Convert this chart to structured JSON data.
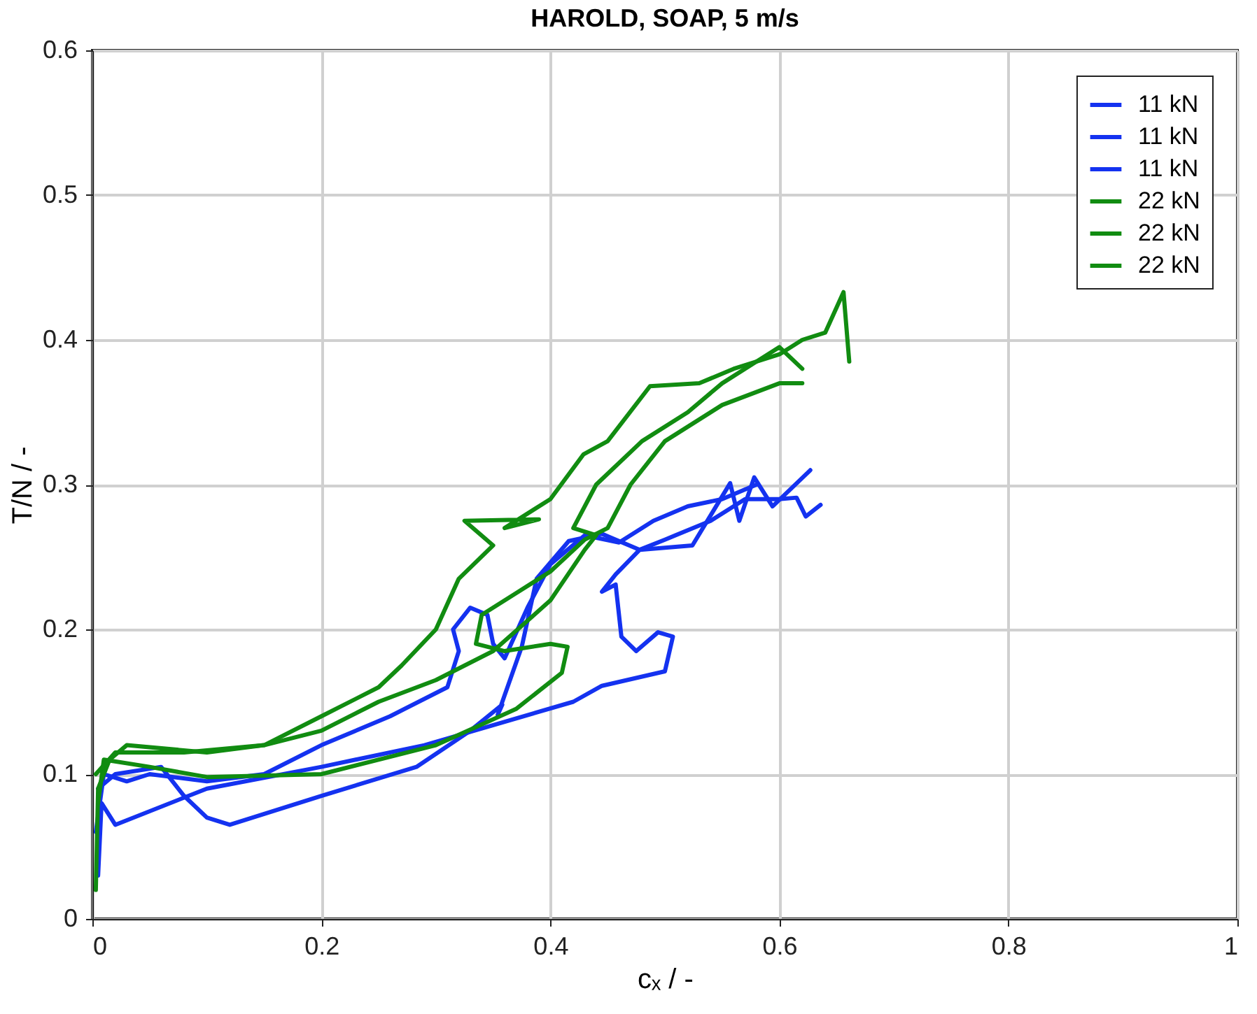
{
  "chart_data": {
    "type": "line",
    "title": "HAROLD, SOAP, 5 m/s",
    "xlabel": "cₓ / -",
    "ylabel": "T/N / -",
    "xlim": [
      0,
      1
    ],
    "ylim": [
      0,
      0.6
    ],
    "xticks": [
      0,
      0.2,
      0.4,
      0.6,
      0.8,
      1
    ],
    "yticks": [
      0,
      0.1,
      0.2,
      0.3,
      0.4,
      0.5,
      0.6
    ],
    "grid": true,
    "legend": "top right",
    "marker": "none",
    "line_style": "solid",
    "series": [
      {
        "name": "11 kN",
        "color": "#1432f0",
        "x": [
          0.005,
          0.008,
          0.02,
          0.1,
          0.2,
          0.29,
          0.42,
          0.445,
          0.5,
          0.507,
          0.494,
          0.475,
          0.462,
          0.457,
          0.445,
          0.457,
          0.478,
          0.524,
          0.557,
          0.565,
          0.578,
          0.594,
          0.627
        ],
        "values": [
          0.03,
          0.08,
          0.065,
          0.09,
          0.105,
          0.12,
          0.15,
          0.161,
          0.171,
          0.195,
          0.198,
          0.185,
          0.195,
          0.231,
          0.226,
          0.238,
          0.255,
          0.258,
          0.301,
          0.275,
          0.305,
          0.285,
          0.31
        ]
      },
      {
        "name": "11 kN",
        "color": "#1432f0",
        "x": [
          0.005,
          0.02,
          0.06,
          0.08,
          0.1,
          0.12,
          0.2,
          0.283,
          0.33,
          0.358,
          0.354,
          0.375,
          0.388,
          0.416,
          0.445,
          0.478,
          0.5,
          0.54,
          0.57,
          0.6,
          0.615,
          0.623,
          0.636
        ],
        "values": [
          0.09,
          0.1,
          0.105,
          0.085,
          0.07,
          0.065,
          0.085,
          0.105,
          0.13,
          0.148,
          0.141,
          0.188,
          0.235,
          0.261,
          0.266,
          0.255,
          0.262,
          0.275,
          0.29,
          0.29,
          0.291,
          0.278,
          0.286
        ]
      },
      {
        "name": "11 kN",
        "color": "#1432f0",
        "x": [
          0.003,
          0.01,
          0.03,
          0.05,
          0.1,
          0.15,
          0.2,
          0.26,
          0.31,
          0.32,
          0.315,
          0.33,
          0.345,
          0.35,
          0.36,
          0.38,
          0.4,
          0.43,
          0.46,
          0.49,
          0.52,
          0.55,
          0.58
        ],
        "values": [
          0.06,
          0.1,
          0.095,
          0.1,
          0.095,
          0.1,
          0.12,
          0.14,
          0.16,
          0.185,
          0.2,
          0.215,
          0.21,
          0.19,
          0.18,
          0.215,
          0.245,
          0.265,
          0.26,
          0.275,
          0.285,
          0.29,
          0.3
        ]
      },
      {
        "name": "22 kN",
        "color": "#118c11",
        "x": [
          0.003,
          0.005,
          0.015,
          0.03,
          0.1,
          0.15,
          0.2,
          0.25,
          0.27,
          0.3,
          0.32,
          0.35,
          0.325,
          0.39,
          0.36,
          0.4,
          0.429,
          0.45,
          0.487,
          0.53,
          0.56,
          0.6,
          0.62,
          0.64,
          0.656,
          0.661
        ],
        "values": [
          0.02,
          0.09,
          0.11,
          0.12,
          0.115,
          0.12,
          0.14,
          0.16,
          0.175,
          0.2,
          0.235,
          0.258,
          0.275,
          0.276,
          0.27,
          0.29,
          0.321,
          0.33,
          0.368,
          0.37,
          0.38,
          0.39,
          0.4,
          0.405,
          0.433,
          0.385
        ]
      },
      {
        "name": "22 kN",
        "color": "#118c11",
        "x": [
          0.005,
          0.01,
          0.05,
          0.1,
          0.2,
          0.3,
          0.37,
          0.41,
          0.415,
          0.4,
          0.36,
          0.335,
          0.34,
          0.37,
          0.4,
          0.43,
          0.45,
          0.47,
          0.5,
          0.55,
          0.6,
          0.62
        ],
        "values": [
          0.08,
          0.11,
          0.105,
          0.098,
          0.1,
          0.12,
          0.145,
          0.17,
          0.188,
          0.19,
          0.185,
          0.19,
          0.21,
          0.225,
          0.24,
          0.262,
          0.27,
          0.3,
          0.33,
          0.355,
          0.37,
          0.37
        ]
      },
      {
        "name": "22 kN",
        "color": "#118c11",
        "x": [
          0.003,
          0.02,
          0.08,
          0.15,
          0.2,
          0.25,
          0.3,
          0.35,
          0.4,
          0.43,
          0.44,
          0.42,
          0.44,
          0.48,
          0.52,
          0.55,
          0.58,
          0.6,
          0.62
        ],
        "values": [
          0.1,
          0.115,
          0.115,
          0.12,
          0.13,
          0.15,
          0.165,
          0.185,
          0.22,
          0.255,
          0.265,
          0.27,
          0.3,
          0.33,
          0.35,
          0.37,
          0.385,
          0.395,
          0.38
        ]
      }
    ]
  }
}
